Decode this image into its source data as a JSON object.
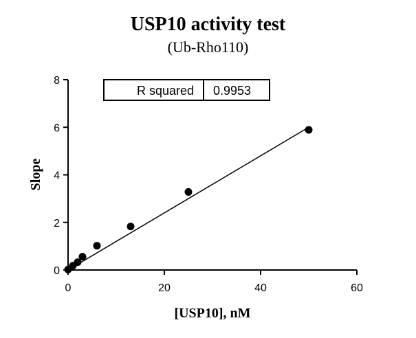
{
  "chart_data": {
    "type": "scatter",
    "title": "USP10 activity test",
    "subtitle": "(Ub-Rho110)",
    "xlabel": "[USP10], nM",
    "ylabel": "Slope",
    "xlim": [
      0,
      60
    ],
    "ylim": [
      0,
      8
    ],
    "x_ticks": [
      0,
      20,
      40,
      60
    ],
    "y_ticks": [
      0,
      2,
      4,
      6,
      8
    ],
    "points": {
      "x": [
        0,
        1,
        2,
        3,
        6,
        13,
        25,
        50
      ],
      "y": [
        0.02,
        0.18,
        0.33,
        0.56,
        1.02,
        1.83,
        3.28,
        5.89
      ]
    },
    "fit_line": {
      "x": [
        0,
        50
      ],
      "y": [
        0,
        6.0
      ]
    },
    "grid": false,
    "legend": "none",
    "stats_box": {
      "label": "R squared",
      "value": "0.9953"
    }
  }
}
